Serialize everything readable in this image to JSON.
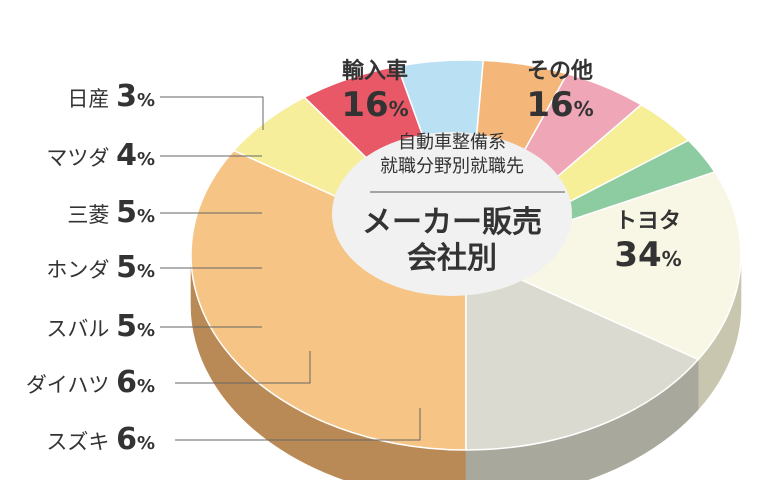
{
  "chart_data": {
    "type": "pie",
    "title": "メーカー販売\n会社別",
    "subtitle": "自動車整備系\n就職分野別就職先",
    "unit": "%",
    "slices": [
      {
        "label": "トヨタ",
        "value": 34,
        "color": "#f6c485",
        "side": "#b98a55"
      },
      {
        "label": "スズキ",
        "value": 6,
        "color": "#f7ee9c",
        "side": "#b1a967"
      },
      {
        "label": "ダイハツ",
        "value": 6,
        "color": "#e85866",
        "side": "#a5353f"
      },
      {
        "label": "スバル",
        "value": 5,
        "color": "#b9e1f3",
        "side": "#6f96a6"
      },
      {
        "label": "ホンダ",
        "value": 5,
        "color": "#f5b67a",
        "side": "#b98556"
      },
      {
        "label": "三菱",
        "value": 5,
        "color": "#efa6b7",
        "side": "#b07584"
      },
      {
        "label": "マツダ",
        "value": 4,
        "color": "#f7ee98",
        "side": "#b5ad6a"
      },
      {
        "label": "日産",
        "value": 3,
        "color": "#8dcba0",
        "side": "#5f9670"
      },
      {
        "label": "輸入車",
        "value": 16,
        "color": "#f8f6e4",
        "side": "#c9c6b0"
      },
      {
        "label": "その他",
        "value": 16,
        "color": "#dadad0",
        "side": "#a8a89c"
      }
    ]
  }
}
